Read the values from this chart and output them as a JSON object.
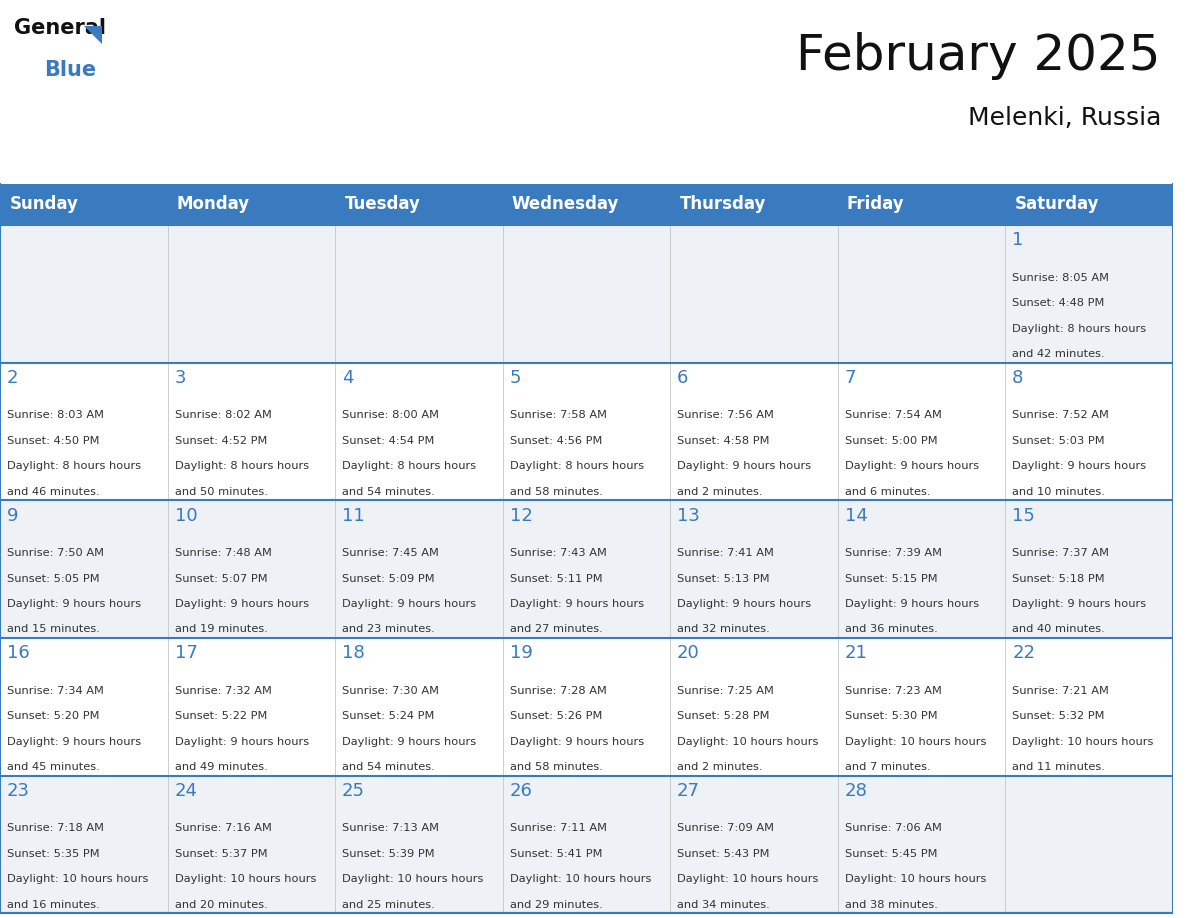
{
  "title": "February 2025",
  "subtitle": "Melenki, Russia",
  "days_of_week": [
    "Sunday",
    "Monday",
    "Tuesday",
    "Wednesday",
    "Thursday",
    "Friday",
    "Saturday"
  ],
  "header_bg": "#3a7abf",
  "header_text": "#ffffff",
  "row_bg_odd": "#eef2f7",
  "row_bg_even": "#ffffff",
  "border_color": "#3a7abf",
  "day_num_color": "#3a7abf",
  "text_color": "#333333",
  "calendar_data": [
    [
      null,
      null,
      null,
      null,
      null,
      null,
      1
    ],
    [
      2,
      3,
      4,
      5,
      6,
      7,
      8
    ],
    [
      9,
      10,
      11,
      12,
      13,
      14,
      15
    ],
    [
      16,
      17,
      18,
      19,
      20,
      21,
      22
    ],
    [
      23,
      24,
      25,
      26,
      27,
      28,
      null
    ]
  ],
  "sun_info": {
    "1": {
      "sunrise": "8:05 AM",
      "sunset": "4:48 PM",
      "daylight": "8 hours and 42 minutes"
    },
    "2": {
      "sunrise": "8:03 AM",
      "sunset": "4:50 PM",
      "daylight": "8 hours and 46 minutes"
    },
    "3": {
      "sunrise": "8:02 AM",
      "sunset": "4:52 PM",
      "daylight": "8 hours and 50 minutes"
    },
    "4": {
      "sunrise": "8:00 AM",
      "sunset": "4:54 PM",
      "daylight": "8 hours and 54 minutes"
    },
    "5": {
      "sunrise": "7:58 AM",
      "sunset": "4:56 PM",
      "daylight": "8 hours and 58 minutes"
    },
    "6": {
      "sunrise": "7:56 AM",
      "sunset": "4:58 PM",
      "daylight": "9 hours and 2 minutes"
    },
    "7": {
      "sunrise": "7:54 AM",
      "sunset": "5:00 PM",
      "daylight": "9 hours and 6 minutes"
    },
    "8": {
      "sunrise": "7:52 AM",
      "sunset": "5:03 PM",
      "daylight": "9 hours and 10 minutes"
    },
    "9": {
      "sunrise": "7:50 AM",
      "sunset": "5:05 PM",
      "daylight": "9 hours and 15 minutes"
    },
    "10": {
      "sunrise": "7:48 AM",
      "sunset": "5:07 PM",
      "daylight": "9 hours and 19 minutes"
    },
    "11": {
      "sunrise": "7:45 AM",
      "sunset": "5:09 PM",
      "daylight": "9 hours and 23 minutes"
    },
    "12": {
      "sunrise": "7:43 AM",
      "sunset": "5:11 PM",
      "daylight": "9 hours and 27 minutes"
    },
    "13": {
      "sunrise": "7:41 AM",
      "sunset": "5:13 PM",
      "daylight": "9 hours and 32 minutes"
    },
    "14": {
      "sunrise": "7:39 AM",
      "sunset": "5:15 PM",
      "daylight": "9 hours and 36 minutes"
    },
    "15": {
      "sunrise": "7:37 AM",
      "sunset": "5:18 PM",
      "daylight": "9 hours and 40 minutes"
    },
    "16": {
      "sunrise": "7:34 AM",
      "sunset": "5:20 PM",
      "daylight": "9 hours and 45 minutes"
    },
    "17": {
      "sunrise": "7:32 AM",
      "sunset": "5:22 PM",
      "daylight": "9 hours and 49 minutes"
    },
    "18": {
      "sunrise": "7:30 AM",
      "sunset": "5:24 PM",
      "daylight": "9 hours and 54 minutes"
    },
    "19": {
      "sunrise": "7:28 AM",
      "sunset": "5:26 PM",
      "daylight": "9 hours and 58 minutes"
    },
    "20": {
      "sunrise": "7:25 AM",
      "sunset": "5:28 PM",
      "daylight": "10 hours and 2 minutes"
    },
    "21": {
      "sunrise": "7:23 AM",
      "sunset": "5:30 PM",
      "daylight": "10 hours and 7 minutes"
    },
    "22": {
      "sunrise": "7:21 AM",
      "sunset": "5:32 PM",
      "daylight": "10 hours and 11 minutes"
    },
    "23": {
      "sunrise": "7:18 AM",
      "sunset": "5:35 PM",
      "daylight": "10 hours and 16 minutes"
    },
    "24": {
      "sunrise": "7:16 AM",
      "sunset": "5:37 PM",
      "daylight": "10 hours and 20 minutes"
    },
    "25": {
      "sunrise": "7:13 AM",
      "sunset": "5:39 PM",
      "daylight": "10 hours and 25 minutes"
    },
    "26": {
      "sunrise": "7:11 AM",
      "sunset": "5:41 PM",
      "daylight": "10 hours and 29 minutes"
    },
    "27": {
      "sunrise": "7:09 AM",
      "sunset": "5:43 PM",
      "daylight": "10 hours and 34 minutes"
    },
    "28": {
      "sunrise": "7:06 AM",
      "sunset": "5:45 PM",
      "daylight": "10 hours and 38 minutes"
    }
  }
}
